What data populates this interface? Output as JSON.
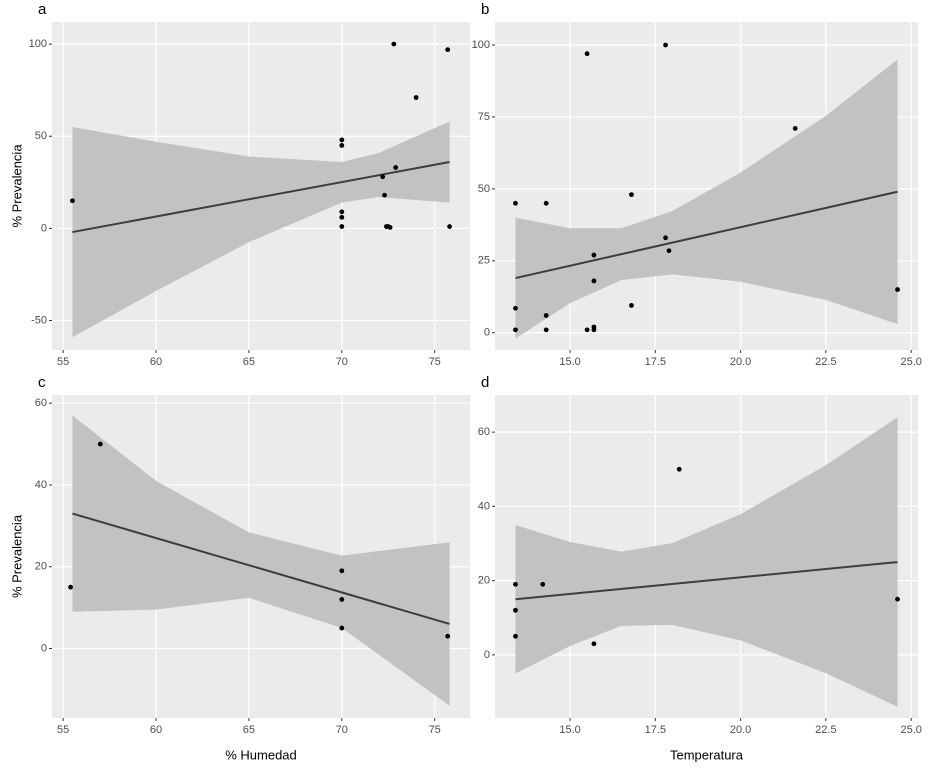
{
  "chart_data": [
    {
      "type": "scatter",
      "panel_label": "a",
      "y_label": "% Prevalencia",
      "xlim": [
        54.4,
        76.9
      ],
      "ylim": [
        -66,
        112
      ],
      "xticks": [
        55,
        60,
        65,
        70,
        75
      ],
      "yticks": [
        -50,
        0,
        50,
        100
      ],
      "grid": true,
      "points": {
        "color": "#000000",
        "x": [
          55.5,
          72.8,
          75.7,
          74,
          70,
          70,
          72.9,
          72.2,
          72.3,
          70,
          70,
          70,
          72.4,
          72.6,
          72.5,
          75.8
        ],
        "y": [
          15,
          100,
          97,
          71,
          48,
          45,
          33,
          28,
          18,
          9,
          6,
          1,
          1,
          0.5,
          1,
          1
        ]
      },
      "fit": {
        "color": "#3d3d3d",
        "x": [
          55.5,
          75.8
        ],
        "y": [
          -2,
          36
        ]
      },
      "band": {
        "color": "#c2c2c2",
        "x": [
          55.5,
          60,
          65,
          70,
          72,
          75.8
        ],
        "upper": [
          55,
          47,
          39,
          36,
          41,
          58
        ],
        "lower": [
          -59,
          -34,
          -7.5,
          14,
          17,
          14
        ]
      }
    },
    {
      "type": "scatter",
      "panel_label": "b",
      "xlim": [
        12.8,
        25.2
      ],
      "ylim": [
        -6,
        108
      ],
      "xticks": [
        {
          "value": 15,
          "label": "15.0"
        },
        {
          "value": 17.5,
          "label": "17.5"
        },
        {
          "value": 20,
          "label": "20.0"
        },
        {
          "value": 22.5,
          "label": "22.5"
        },
        {
          "value": 25,
          "label": "25.0"
        }
      ],
      "yticks": [
        0,
        25,
        50,
        75,
        100
      ],
      "grid": true,
      "points": {
        "color": "#000000",
        "x": [
          13.4,
          13.4,
          13.4,
          14.3,
          14.3,
          14.3,
          15.5,
          15.7,
          15.7,
          15.7,
          15.7,
          15.5,
          16.8,
          16.8,
          17.8,
          17.8,
          17.9,
          21.6,
          24.6
        ],
        "y": [
          45,
          8.5,
          1,
          45,
          6,
          1,
          97,
          27,
          18,
          1,
          2,
          1,
          48,
          9.5,
          100,
          33,
          28.5,
          71,
          15
        ]
      },
      "fit": {
        "color": "#3d3d3d",
        "x": [
          13.4,
          24.6
        ],
        "y": [
          19,
          49
        ]
      },
      "band": {
        "color": "#c2c2c2",
        "x": [
          13.4,
          15,
          16.5,
          18,
          20,
          22.5,
          24.6
        ],
        "upper": [
          40,
          36.3,
          36.3,
          42.3,
          55.7,
          75.4,
          95
        ],
        "lower": [
          -2,
          10.3,
          18.3,
          20.3,
          17.7,
          11.4,
          3
        ]
      }
    },
    {
      "type": "scatter",
      "panel_label": "c",
      "y_label": "% Prevalencia",
      "x_label": "% Humedad",
      "xlim": [
        54.4,
        76.9
      ],
      "ylim": [
        -17,
        62
      ],
      "xticks": [
        55,
        60,
        65,
        70,
        75
      ],
      "yticks": [
        0,
        20,
        40,
        60
      ],
      "grid": true,
      "points": {
        "color": "#000000",
        "x": [
          55.4,
          57,
          70,
          70,
          70,
          75.7
        ],
        "y": [
          15,
          50,
          19,
          12,
          5,
          3
        ]
      },
      "fit": {
        "color": "#3d3d3d",
        "x": [
          55.5,
          75.8
        ],
        "y": [
          33,
          6
        ]
      },
      "band": {
        "color": "#c2c2c2",
        "x": [
          55.5,
          60,
          65,
          70,
          75.8
        ],
        "upper": [
          57,
          41,
          28.4,
          22.7,
          26
        ],
        "lower": [
          9,
          9.5,
          12.4,
          5,
          -14
        ]
      }
    },
    {
      "type": "scatter",
      "panel_label": "d",
      "x_label": "Temperatura",
      "xlim": [
        12.8,
        25.2
      ],
      "ylim": [
        -17,
        70
      ],
      "xticks": [
        {
          "value": 15,
          "label": "15.0"
        },
        {
          "value": 17.5,
          "label": "17.5"
        },
        {
          "value": 20,
          "label": "20.0"
        },
        {
          "value": 22.5,
          "label": "22.5"
        },
        {
          "value": 25,
          "label": "25.0"
        }
      ],
      "yticks": [
        0,
        20,
        40,
        60
      ],
      "grid": true,
      "points": {
        "color": "#000000",
        "x": [
          13.4,
          13.4,
          13.4,
          14.2,
          15.7,
          18.2,
          24.6
        ],
        "y": [
          19,
          12,
          5,
          19,
          3,
          50,
          15
        ]
      },
      "fit": {
        "color": "#3d3d3d",
        "x": [
          13.4,
          24.6
        ],
        "y": [
          15,
          25
        ]
      },
      "band": {
        "color": "#c2c2c2",
        "x": [
          13.4,
          15,
          16.5,
          18,
          20,
          22.5,
          24.6
        ],
        "upper": [
          35,
          30.4,
          27.8,
          30.1,
          37.9,
          51.1,
          64
        ],
        "lower": [
          -5,
          2.4,
          7.8,
          8.1,
          3.9,
          -4.9,
          -14
        ]
      }
    }
  ]
}
